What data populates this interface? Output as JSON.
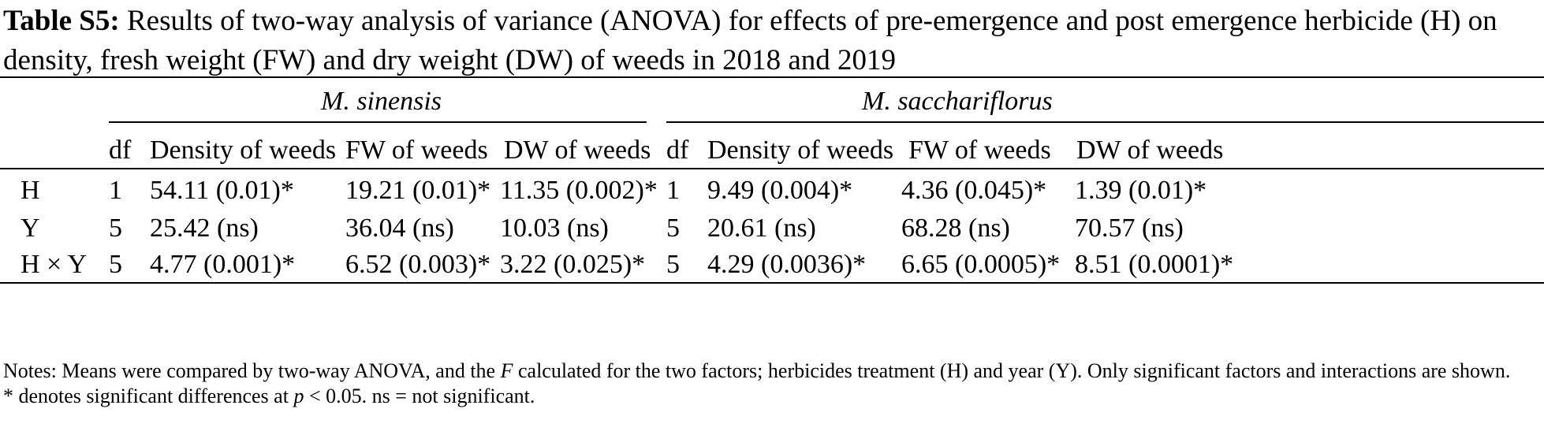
{
  "caption": {
    "label": "Table S5:",
    "text": "Results of two-way analysis of variance (ANOVA) for effects of pre-emergence and post emergence herbicide (H) on density, fresh weight (FW) and dry weight (DW) of weeds in 2018 and 2019"
  },
  "table": {
    "groups": [
      "M. sinensis",
      "M. sacchariflorus"
    ],
    "columns": [
      "df",
      "Density of weeds",
      "FW of weeds",
      "DW of weeds",
      "df",
      "Density of weeds",
      "FW of weeds",
      "DW of weeds"
    ],
    "rows": [
      {
        "factor": "H",
        "cells": [
          "1",
          "54.11 (0.01)*",
          "19.21 (0.01)*",
          "11.35 (0.002)*",
          "1",
          "9.49 (0.004)*",
          "4.36 (0.045)*",
          "1.39 (0.01)*"
        ]
      },
      {
        "factor": "Y",
        "cells": [
          "5",
          "25.42 (ns)",
          "36.04 (ns)",
          "10.03 (ns)",
          "5",
          "20.61 (ns)",
          "68.28 (ns)",
          "70.57 (ns)"
        ]
      },
      {
        "factor": "H × Y",
        "cells": [
          "5",
          "4.77 (0.001)*",
          "6.52 (0.003)*",
          "3.22 (0.025)*",
          "5",
          "4.29 (0.0036)*",
          "6.65 (0.0005)*",
          "8.51 (0.0001)*"
        ]
      }
    ]
  },
  "notes": {
    "line1_a": "Notes: Means were compared by two-way ANOVA, and the ",
    "line1_f": "F",
    "line1_b": " calculated for the two factors; herbicides treatment (H) and year (Y). Only significant factors and interactions are shown.",
    "line2_a": "* denotes significant differences at ",
    "line2_p": "p",
    "line2_b": " < 0.05. ns = not significant."
  }
}
